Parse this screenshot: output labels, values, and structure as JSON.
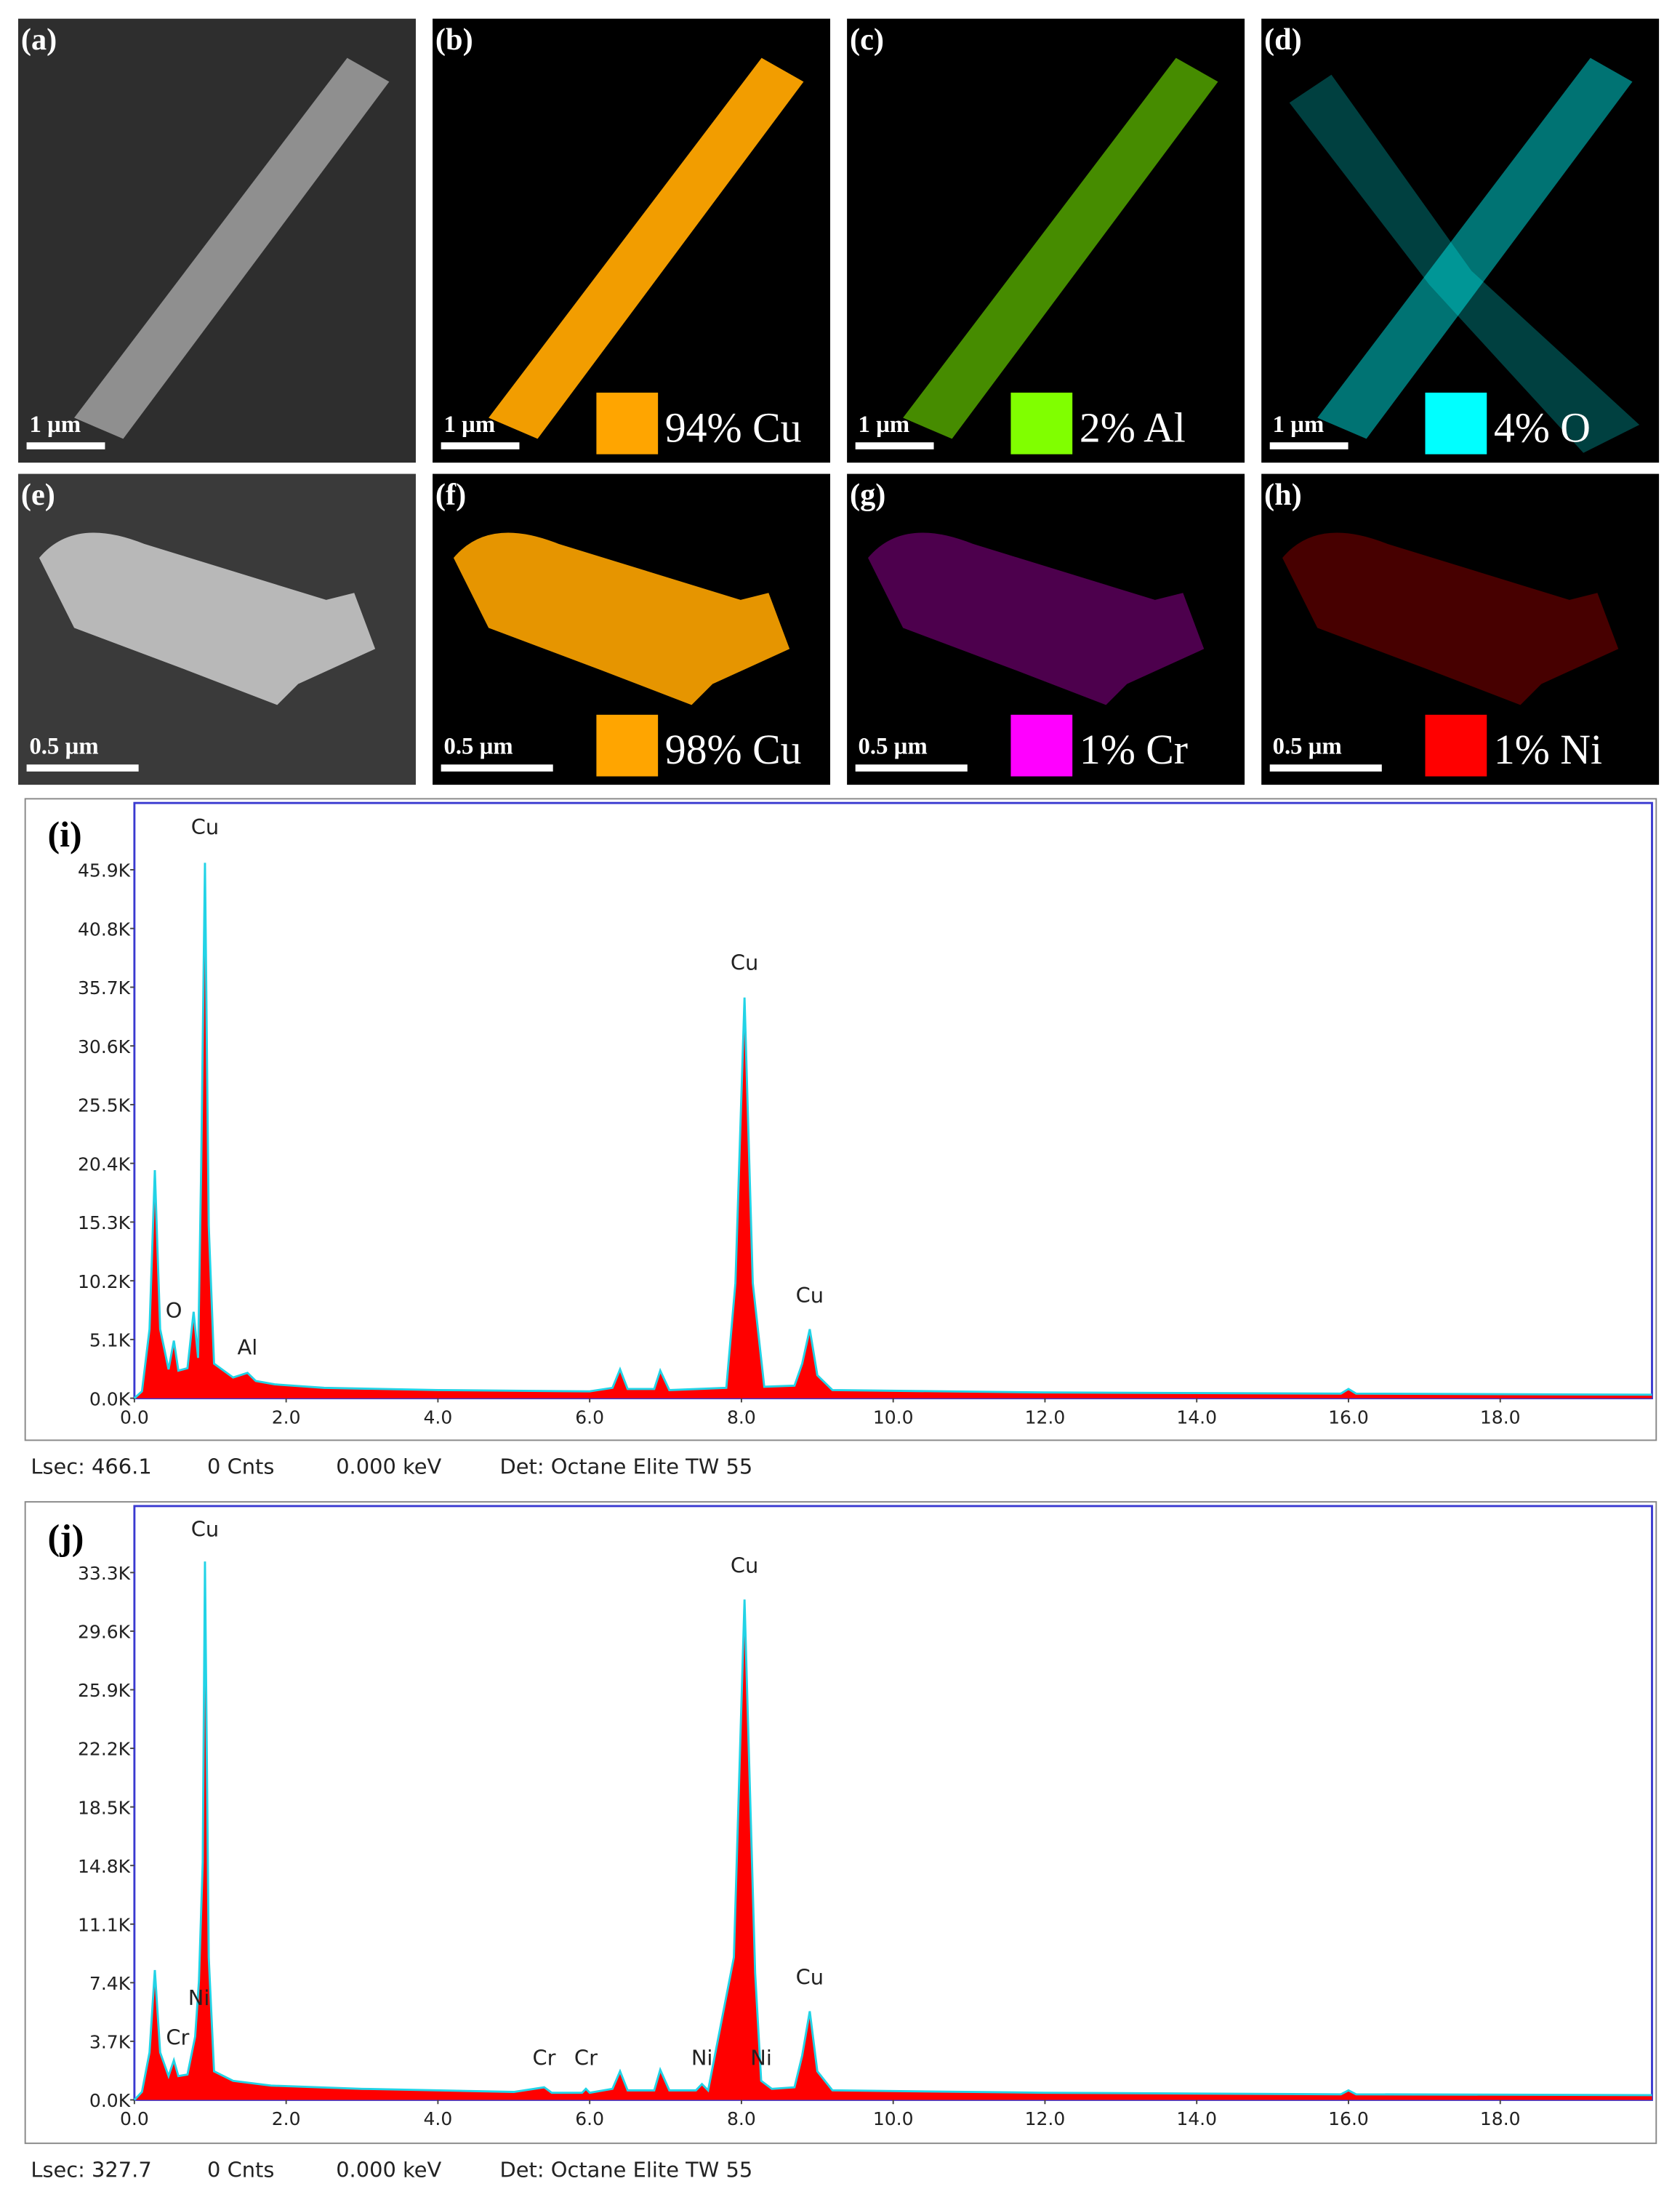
{
  "panels": [
    {
      "label": "(a)",
      "scale_bar": "1 µm"
    },
    {
      "label": "(b)",
      "scale_bar": "1 µm",
      "legend": "94% Cu",
      "color": "#ffa500"
    },
    {
      "label": "(c)",
      "scale_bar": "1 µm",
      "legend": "2% Al",
      "color": "#80ff00"
    },
    {
      "label": "(d)",
      "scale_bar": "1 µm",
      "legend": "4% O",
      "color": "#00ffff"
    },
    {
      "label": "(e)",
      "scale_bar": "0.5 µm"
    },
    {
      "label": "(f)",
      "scale_bar": "0.5 µm",
      "legend": "98% Cu",
      "color": "#ffa500"
    },
    {
      "label": "(g)",
      "scale_bar": "0.5 µm",
      "legend": "1% Cr",
      "color": "#ff00ff"
    },
    {
      "label": "(h)",
      "scale_bar": "0.5 µm",
      "legend": "1% Ni",
      "color": "#ff0000"
    }
  ],
  "chart_data": [
    {
      "type": "area",
      "label": "(i)",
      "color": "#ff0000",
      "line_color": "#22d3e6",
      "xlim": [
        0,
        20
      ],
      "ylim": [
        0,
        51700
      ],
      "xticks": [
        {
          "value": 0,
          "label": "0.0"
        },
        {
          "value": 2,
          "label": "2.0"
        },
        {
          "value": 4,
          "label": "4.0"
        },
        {
          "value": 6,
          "label": "6.0"
        },
        {
          "value": 8,
          "label": "8.0"
        },
        {
          "value": 10,
          "label": "10.0"
        },
        {
          "value": 12,
          "label": "12.0"
        },
        {
          "value": 14,
          "label": "14.0"
        },
        {
          "value": 16,
          "label": "16.0"
        },
        {
          "value": 18,
          "label": "18.0"
        }
      ],
      "yticks": [
        {
          "value": 0,
          "label": "0.0K"
        },
        {
          "value": 5100,
          "label": "5.1K"
        },
        {
          "value": 10200,
          "label": "10.2K"
        },
        {
          "value": 15300,
          "label": "15.3K"
        },
        {
          "value": 20400,
          "label": "20.4K"
        },
        {
          "value": 25500,
          "label": "25.5K"
        },
        {
          "value": 30600,
          "label": "30.6K"
        },
        {
          "value": 35700,
          "label": "35.7K"
        },
        {
          "value": 40800,
          "label": "40.8K"
        },
        {
          "value": 45900,
          "label": "45.9K"
        }
      ],
      "x": [
        0,
        0.1,
        0.2,
        0.27,
        0.34,
        0.45,
        0.52,
        0.58,
        0.7,
        0.78,
        0.84,
        0.88,
        0.93,
        0.98,
        1.05,
        1.3,
        1.49,
        1.6,
        1.85,
        2.5,
        4,
        6,
        6.3,
        6.4,
        6.5,
        6.85,
        6.93,
        7.05,
        7.8,
        7.92,
        8.04,
        8.15,
        8.3,
        8.7,
        8.8,
        8.9,
        9,
        9.2,
        12,
        15.9,
        16,
        16.1,
        20
      ],
      "values": [
        0,
        600,
        6000,
        19800,
        6000,
        2500,
        5000,
        2400,
        2600,
        7500,
        3500,
        20000,
        46500,
        15000,
        3000,
        1800,
        2200,
        1500,
        1200,
        900,
        700,
        600,
        900,
        2500,
        800,
        800,
        2400,
        700,
        900,
        10000,
        34800,
        10000,
        1000,
        1100,
        3000,
        6000,
        2000,
        700,
        500,
        400,
        800,
        400,
        300
      ],
      "annotations": [
        {
          "text": "Cu",
          "x": 0.93,
          "y": 49000
        },
        {
          "text": "O",
          "x": 0.52,
          "y": 7000
        },
        {
          "text": "Al",
          "x": 1.49,
          "y": 3800
        },
        {
          "text": "Cu",
          "x": 8.04,
          "y": 37200
        },
        {
          "text": "Cu",
          "x": 8.9,
          "y": 8300
        }
      ],
      "footer": [
        "Lsec: 466.1",
        "0 Cnts",
        "0.000 keV",
        "Det: Octane Elite TW 55"
      ]
    },
    {
      "type": "area",
      "label": "(j)",
      "color": "#ff0000",
      "line_color": "#22d3e6",
      "xlim": [
        0,
        20
      ],
      "ylim": [
        0,
        37500
      ],
      "xticks": [
        {
          "value": 0,
          "label": "0.0"
        },
        {
          "value": 2,
          "label": "2.0"
        },
        {
          "value": 4,
          "label": "4.0"
        },
        {
          "value": 6,
          "label": "6.0"
        },
        {
          "value": 8,
          "label": "8.0"
        },
        {
          "value": 10,
          "label": "10.0"
        },
        {
          "value": 12,
          "label": "12.0"
        },
        {
          "value": 14,
          "label": "14.0"
        },
        {
          "value": 16,
          "label": "16.0"
        },
        {
          "value": 18,
          "label": "18.0"
        }
      ],
      "yticks": [
        {
          "value": 0,
          "label": "0.0K"
        },
        {
          "value": 3700,
          "label": "3.7K"
        },
        {
          "value": 7400,
          "label": "7.4K"
        },
        {
          "value": 11100,
          "label": "11.1K"
        },
        {
          "value": 14800,
          "label": "14.8K"
        },
        {
          "value": 18500,
          "label": "18.5K"
        },
        {
          "value": 22200,
          "label": "22.2K"
        },
        {
          "value": 25900,
          "label": "25.9K"
        },
        {
          "value": 29600,
          "label": "29.6K"
        },
        {
          "value": 33300,
          "label": "33.3K"
        }
      ],
      "x": [
        0,
        0.1,
        0.2,
        0.27,
        0.34,
        0.45,
        0.52,
        0.58,
        0.7,
        0.8,
        0.85,
        0.9,
        0.93,
        0.98,
        1.05,
        1.3,
        1.8,
        3,
        5,
        5.4,
        5.5,
        5.9,
        5.95,
        6.0,
        6.3,
        6.4,
        6.5,
        6.85,
        6.93,
        7.05,
        7.4,
        7.48,
        7.56,
        7.9,
        8.04,
        8.18,
        8.26,
        8.4,
        8.7,
        8.8,
        8.9,
        9,
        9.2,
        12,
        15.9,
        16,
        16.1,
        20
      ],
      "values": [
        0,
        500,
        3000,
        8200,
        3000,
        1500,
        2500,
        1500,
        1600,
        4000,
        7500,
        15000,
        34000,
        9000,
        1800,
        1200,
        900,
        700,
        500,
        800,
        450,
        450,
        700,
        450,
        700,
        1800,
        600,
        600,
        1900,
        600,
        600,
        1000,
        600,
        9000,
        31600,
        8000,
        1200,
        700,
        800,
        2800,
        5600,
        1800,
        600,
        450,
        350,
        600,
        350,
        300
      ],
      "annotations": [
        {
          "text": "Cu",
          "x": 0.93,
          "y": 35600
        },
        {
          "text": "Cr",
          "x": 0.57,
          "y": 3500
        },
        {
          "text": "Ni",
          "x": 0.85,
          "y": 6000
        },
        {
          "text": "Cr",
          "x": 5.4,
          "y": 2200
        },
        {
          "text": "Cr",
          "x": 5.95,
          "y": 2200
        },
        {
          "text": "Ni",
          "x": 7.48,
          "y": 2200
        },
        {
          "text": "Ni",
          "x": 8.26,
          "y": 2200
        },
        {
          "text": "Cu",
          "x": 8.04,
          "y": 33300
        },
        {
          "text": "Cu",
          "x": 8.9,
          "y": 7300
        }
      ],
      "footer": [
        "Lsec: 327.7",
        "0 Cnts",
        "0.000 keV",
        "Det: Octane Elite TW 55"
      ]
    }
  ]
}
